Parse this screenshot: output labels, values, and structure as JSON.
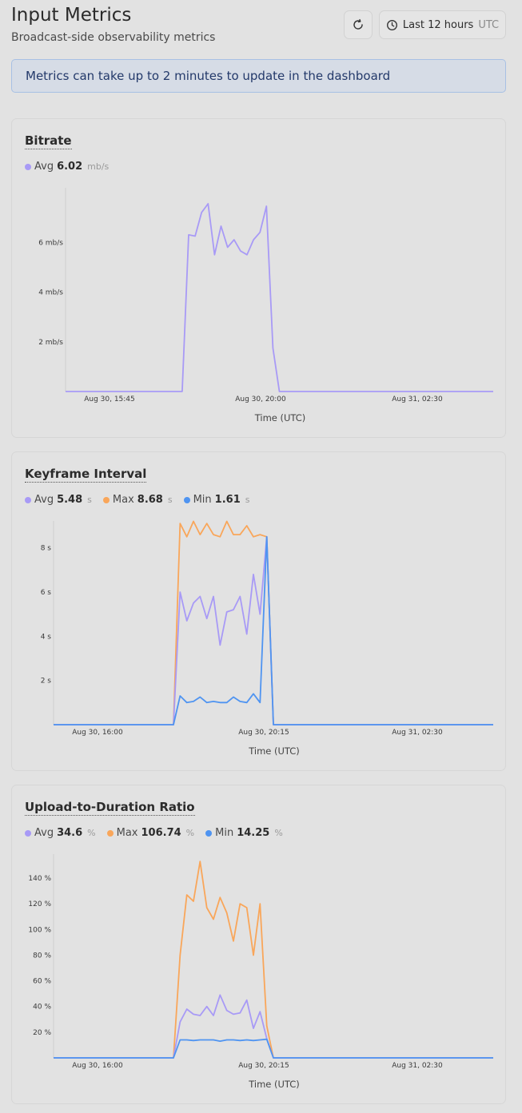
{
  "header": {
    "title": "Input Metrics",
    "subtitle": "Broadcast-side observability metrics",
    "time_range_label": "Last 12 hours",
    "timezone": "UTC"
  },
  "notice": "Metrics can take up to 2 minutes to update in the dashboard",
  "colors": {
    "avg": "#a89af6",
    "max": "#f9a65a",
    "min": "#4f94f1"
  },
  "icons": {
    "refresh": "refresh-icon",
    "clock": "clock-icon"
  },
  "chart_data": [
    {
      "title": "Bitrate",
      "type": "line",
      "xlabel": "Time (UTC)",
      "x_ticks": [
        "Aug 30, 15:45",
        "Aug 30, 20:00",
        "Aug 31, 02:30"
      ],
      "y_ticks": [
        "2 mb/s",
        "4 mb/s",
        "6 mb/s"
      ],
      "y_tick_values": [
        2,
        4,
        6
      ],
      "ylim": [
        0,
        8
      ],
      "legend": [
        {
          "name": "Avg",
          "value": "6.02",
          "unit": "mb/s",
          "color": "avg"
        }
      ],
      "series": [
        {
          "name": "Avg",
          "color": "avg",
          "values": [
            0,
            0,
            0,
            0,
            0,
            0,
            0,
            0,
            0,
            0,
            0,
            0,
            0,
            0,
            0,
            0,
            0,
            0,
            0,
            6.3,
            6.25,
            7.2,
            7.55,
            5.5,
            6.65,
            5.8,
            6.1,
            5.65,
            5.5,
            6.1,
            6.4,
            7.45,
            1.75,
            0,
            0,
            0,
            0,
            0,
            0,
            0,
            0,
            0,
            0,
            0,
            0,
            0,
            0,
            0,
            0,
            0,
            0,
            0,
            0,
            0,
            0,
            0,
            0,
            0,
            0,
            0,
            0,
            0,
            0,
            0,
            0,
            0,
            0
          ]
        }
      ]
    },
    {
      "title": "Keyframe Interval",
      "type": "line",
      "xlabel": "Time (UTC)",
      "x_ticks": [
        "Aug 30, 16:00",
        "Aug 30, 20:15",
        "Aug 31, 02:30"
      ],
      "y_ticks": [
        "2 s",
        "4 s",
        "6 s",
        "8 s"
      ],
      "y_tick_values": [
        2,
        4,
        6,
        8
      ],
      "ylim": [
        0,
        9
      ],
      "legend": [
        {
          "name": "Avg",
          "value": "5.48",
          "unit": "s",
          "color": "avg"
        },
        {
          "name": "Max",
          "value": "8.68",
          "unit": "s",
          "color": "max"
        },
        {
          "name": "Min",
          "value": "1.61",
          "unit": "s",
          "color": "min"
        }
      ],
      "series": [
        {
          "name": "Max",
          "color": "max",
          "values": [
            0,
            0,
            0,
            0,
            0,
            0,
            0,
            0,
            0,
            0,
            0,
            0,
            0,
            0,
            0,
            0,
            0,
            0,
            0,
            9.1,
            8.5,
            9.2,
            8.6,
            9.1,
            8.6,
            8.5,
            9.2,
            8.6,
            8.6,
            9.0,
            8.5,
            8.6,
            8.5,
            0,
            0,
            0,
            0,
            0,
            0,
            0,
            0,
            0,
            0,
            0,
            0,
            0,
            0,
            0,
            0,
            0,
            0,
            0,
            0,
            0,
            0,
            0,
            0,
            0,
            0,
            0,
            0,
            0,
            0,
            0,
            0,
            0,
            0
          ]
        },
        {
          "name": "Avg",
          "color": "avg",
          "values": [
            0,
            0,
            0,
            0,
            0,
            0,
            0,
            0,
            0,
            0,
            0,
            0,
            0,
            0,
            0,
            0,
            0,
            0,
            0,
            6.0,
            4.7,
            5.5,
            5.8,
            4.8,
            5.8,
            3.6,
            5.1,
            5.2,
            5.8,
            4.1,
            6.8,
            5.0,
            8.5,
            0,
            0,
            0,
            0,
            0,
            0,
            0,
            0,
            0,
            0,
            0,
            0,
            0,
            0,
            0,
            0,
            0,
            0,
            0,
            0,
            0,
            0,
            0,
            0,
            0,
            0,
            0,
            0,
            0,
            0,
            0,
            0,
            0,
            0
          ]
        },
        {
          "name": "Min",
          "color": "min",
          "values": [
            0,
            0,
            0,
            0,
            0,
            0,
            0,
            0,
            0,
            0,
            0,
            0,
            0,
            0,
            0,
            0,
            0,
            0,
            0,
            1.3,
            1.0,
            1.05,
            1.25,
            1.0,
            1.05,
            1.0,
            1.0,
            1.25,
            1.05,
            1.0,
            1.4,
            1.0,
            8.5,
            0,
            0,
            0,
            0,
            0,
            0,
            0,
            0,
            0,
            0,
            0,
            0,
            0,
            0,
            0,
            0,
            0,
            0,
            0,
            0,
            0,
            0,
            0,
            0,
            0,
            0,
            0,
            0,
            0,
            0,
            0,
            0,
            0,
            0
          ]
        }
      ]
    },
    {
      "title": "Upload-to-Duration Ratio",
      "type": "line",
      "xlabel": "Time (UTC)",
      "x_ticks": [
        "Aug 30, 16:00",
        "Aug 30, 20:15",
        "Aug 31, 02:30"
      ],
      "y_ticks": [
        "20 %",
        "40 %",
        "60 %",
        "80 %",
        "100 %",
        "120 %",
        "140 %"
      ],
      "y_tick_values": [
        20,
        40,
        60,
        80,
        100,
        120,
        140
      ],
      "ylim": [
        0,
        155
      ],
      "legend": [
        {
          "name": "Avg",
          "value": "34.6",
          "unit": "%",
          "color": "avg"
        },
        {
          "name": "Max",
          "value": "106.74",
          "unit": "%",
          "color": "max"
        },
        {
          "name": "Min",
          "value": "14.25",
          "unit": "%",
          "color": "min"
        }
      ],
      "series": [
        {
          "name": "Max",
          "color": "max",
          "values": [
            0,
            0,
            0,
            0,
            0,
            0,
            0,
            0,
            0,
            0,
            0,
            0,
            0,
            0,
            0,
            0,
            0,
            0,
            0,
            80,
            127,
            122,
            153,
            117,
            108,
            125,
            113,
            91,
            120,
            117,
            80,
            120,
            25,
            0,
            0,
            0,
            0,
            0,
            0,
            0,
            0,
            0,
            0,
            0,
            0,
            0,
            0,
            0,
            0,
            0,
            0,
            0,
            0,
            0,
            0,
            0,
            0,
            0,
            0,
            0,
            0,
            0,
            0,
            0,
            0,
            0,
            0
          ]
        },
        {
          "name": "Avg",
          "color": "avg",
          "values": [
            0,
            0,
            0,
            0,
            0,
            0,
            0,
            0,
            0,
            0,
            0,
            0,
            0,
            0,
            0,
            0,
            0,
            0,
            0,
            28,
            38,
            34,
            33,
            40,
            33,
            49,
            37,
            34,
            35,
            45,
            23,
            36,
            15,
            0,
            0,
            0,
            0,
            0,
            0,
            0,
            0,
            0,
            0,
            0,
            0,
            0,
            0,
            0,
            0,
            0,
            0,
            0,
            0,
            0,
            0,
            0,
            0,
            0,
            0,
            0,
            0,
            0,
            0,
            0,
            0,
            0,
            0
          ]
        },
        {
          "name": "Min",
          "color": "min",
          "values": [
            0,
            0,
            0,
            0,
            0,
            0,
            0,
            0,
            0,
            0,
            0,
            0,
            0,
            0,
            0,
            0,
            0,
            0,
            0,
            14,
            14,
            13.5,
            14,
            14,
            14,
            13,
            14,
            14,
            13.5,
            14,
            13.5,
            14,
            14.5,
            0,
            0,
            0,
            0,
            0,
            0,
            0,
            0,
            0,
            0,
            0,
            0,
            0,
            0,
            0,
            0,
            0,
            0,
            0,
            0,
            0,
            0,
            0,
            0,
            0,
            0,
            0,
            0,
            0,
            0,
            0,
            0,
            0,
            0
          ]
        }
      ]
    }
  ]
}
